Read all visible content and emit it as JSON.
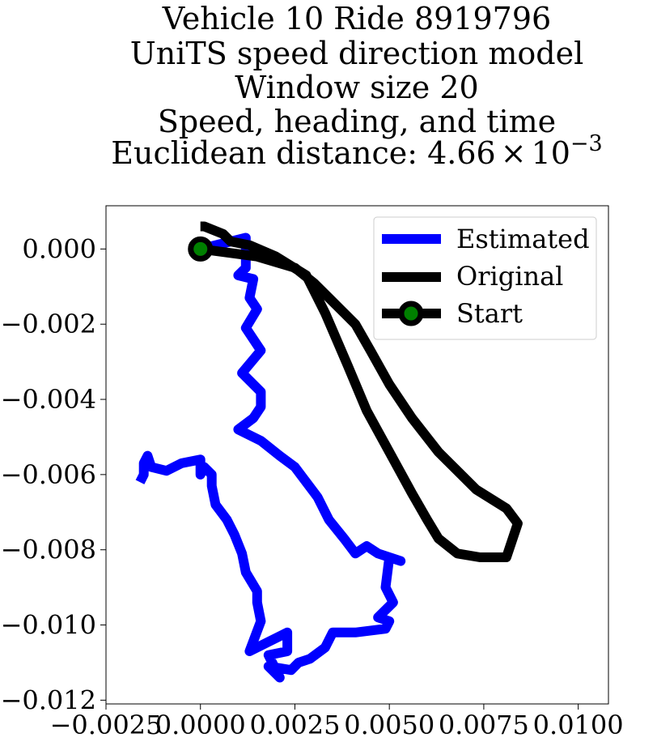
{
  "chart_data": {
    "type": "line",
    "title_lines": [
      "Vehicle 10 Ride 8919796",
      "UniTS speed direction model",
      "Window size 20",
      "Speed, heading, and time",
      "Euclidean distance: 4.66 × 10^−3"
    ],
    "title_distance_prefix": "Euclidean distance: 4.66",
    "title_distance_times": "×",
    "title_distance_base": "10",
    "title_distance_exp": "−3",
    "xlabel": "",
    "ylabel": "",
    "xlim": [
      -0.0025,
      0.0108
    ],
    "ylim": [
      -0.0121,
      0.00115
    ],
    "x_ticks": [
      {
        "value": -0.0025,
        "label": "−0.0025"
      },
      {
        "value": 0.0,
        "label": "0.0000"
      },
      {
        "value": 0.0025,
        "label": "0.0025"
      },
      {
        "value": 0.005,
        "label": "0.0050"
      },
      {
        "value": 0.0075,
        "label": "0.0075"
      },
      {
        "value": 0.01,
        "label": "0.0100"
      }
    ],
    "y_ticks": [
      {
        "value": 0.0,
        "label": "0.000"
      },
      {
        "value": -0.002,
        "label": "−0.002"
      },
      {
        "value": -0.004,
        "label": "−0.004"
      },
      {
        "value": -0.006,
        "label": "−0.006"
      },
      {
        "value": -0.008,
        "label": "−0.008"
      },
      {
        "value": -0.01,
        "label": "−0.010"
      },
      {
        "value": -0.012,
        "label": "−0.012"
      }
    ],
    "grid": false,
    "legend_placement": "top-right",
    "series": [
      {
        "name": "Estimated",
        "color": "#0000ff",
        "x": [
          0.0,
          0.0012,
          0.0012,
          0.001,
          0.0014,
          0.0013,
          0.0015,
          0.0012,
          0.0016,
          0.0011,
          0.0016,
          0.0016,
          0.0014,
          0.001,
          0.0016,
          0.0021,
          0.0025,
          0.0031,
          0.0034,
          0.0038,
          0.0041,
          0.0044,
          0.0047,
          0.0053,
          0.005,
          0.0049,
          0.0051,
          0.0047,
          0.005,
          0.0049,
          0.0041,
          0.0035,
          0.0033,
          0.0029,
          0.0026,
          0.0024,
          0.0018,
          0.0021,
          0.0018,
          0.0023,
          0.0023,
          0.0013,
          0.0016,
          0.0015,
          0.0015,
          0.0012,
          0.0011,
          0.0009,
          0.0007,
          0.0004,
          0.0003,
          0.0003,
          0.0001,
          0.0,
          0.0,
          -0.0005,
          -0.0009,
          -0.0013,
          -0.0014,
          -0.0015,
          -0.0015,
          -0.0016
        ],
        "y": [
          0.0,
          0.0003,
          -0.0005,
          -0.0007,
          -0.0008,
          -0.0013,
          -0.0016,
          -0.0021,
          -0.0027,
          -0.0033,
          -0.0038,
          -0.0042,
          -0.0045,
          -0.0048,
          -0.0051,
          -0.0055,
          -0.0058,
          -0.0066,
          -0.0072,
          -0.0077,
          -0.0081,
          -0.0079,
          -0.0081,
          -0.0083,
          -0.0082,
          -0.009,
          -0.0094,
          -0.0098,
          -0.0099,
          -0.0101,
          -0.0102,
          -0.0102,
          -0.0106,
          -0.0109,
          -0.011,
          -0.0112,
          -0.0111,
          -0.0114,
          -0.0108,
          -0.0107,
          -0.0102,
          -0.0107,
          -0.0099,
          -0.0094,
          -0.0091,
          -0.0086,
          -0.0081,
          -0.0076,
          -0.0072,
          -0.0068,
          -0.0063,
          -0.006,
          -0.0058,
          -0.006,
          -0.0056,
          -0.0057,
          -0.0059,
          -0.0058,
          -0.0055,
          -0.0057,
          -0.006,
          -0.0062
        ]
      },
      {
        "name": "Original",
        "color": "#000000",
        "x": [
          0.0,
          0.0015,
          0.0025,
          0.003,
          0.0034,
          0.0038,
          0.0041,
          0.0045,
          0.005,
          0.0056,
          0.0063,
          0.0073,
          0.0081,
          0.0084,
          0.0081,
          0.0074,
          0.0068,
          0.0063,
          0.006,
          0.0056,
          0.005,
          0.0044,
          0.0039,
          0.0033,
          0.0028,
          0.002,
          0.0013,
          0.0008,
          0.0006,
          0.0001,
          0.0
        ],
        "y": [
          0.0,
          -0.0002,
          -0.0005,
          -0.0009,
          -0.0013,
          -0.0017,
          -0.002,
          -0.0027,
          -0.0036,
          -0.0045,
          -0.0054,
          -0.0064,
          -0.0069,
          -0.0073,
          -0.0082,
          -0.0082,
          -0.0081,
          -0.0077,
          -0.0072,
          -0.0065,
          -0.0054,
          -0.0043,
          -0.0031,
          -0.0017,
          -0.0007,
          -0.0002,
          0.0001,
          0.0002,
          0.0004,
          0.0006,
          0.0006
        ]
      },
      {
        "name": "Start",
        "color": "#000000",
        "marker_fill": "#008000",
        "x": [
          0.0
        ],
        "y": [
          0.0
        ]
      }
    ]
  }
}
